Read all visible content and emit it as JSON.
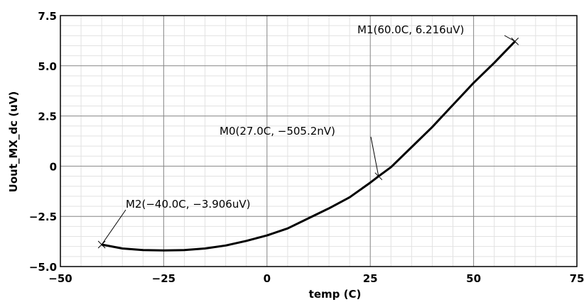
{
  "chart_data": {
    "type": "line",
    "title": "",
    "xlabel": "temp (C)",
    "ylabel": "Uout_MX_dc (uV)",
    "xlim": [
      -50,
      75
    ],
    "ylim": [
      -5.0,
      7.5
    ],
    "xticks": [
      -50,
      -25,
      0,
      25,
      50,
      75
    ],
    "xtick_labels": [
      "−50",
      "−25",
      "0",
      "25",
      "50",
      "75"
    ],
    "yticks": [
      -5.0,
      -2.5,
      0,
      2.5,
      5.0,
      7.5
    ],
    "ytick_labels": [
      "−5.0",
      "−2.5",
      "0",
      "2.5",
      "5.0",
      "7.5"
    ],
    "grid": true,
    "series": [
      {
        "color": "#000000",
        "x": [
          -40,
          -35,
          -30,
          -25,
          -20,
          -15,
          -10,
          -5,
          0,
          5,
          10,
          15,
          20,
          25,
          27,
          30,
          35,
          40,
          45,
          50,
          55,
          60
        ],
        "y": [
          -3.906,
          -4.1,
          -4.18,
          -4.2,
          -4.18,
          -4.1,
          -3.95,
          -3.72,
          -3.45,
          -3.1,
          -2.6,
          -2.1,
          -1.55,
          -0.82,
          -0.505,
          -0.05,
          0.95,
          1.95,
          3.05,
          4.15,
          5.15,
          6.216
        ]
      }
    ],
    "markers": [
      {
        "label": "M0(27.0C, −505.2nV)",
        "x": 27.0,
        "y": -0.5052
      },
      {
        "label": "M1(60.0C, 6.216uV)",
        "x": 60.0,
        "y": 6.216
      },
      {
        "label": "M2(−40.0C, −3.906uV)",
        "x": -40.0,
        "y": -3.906
      }
    ]
  }
}
